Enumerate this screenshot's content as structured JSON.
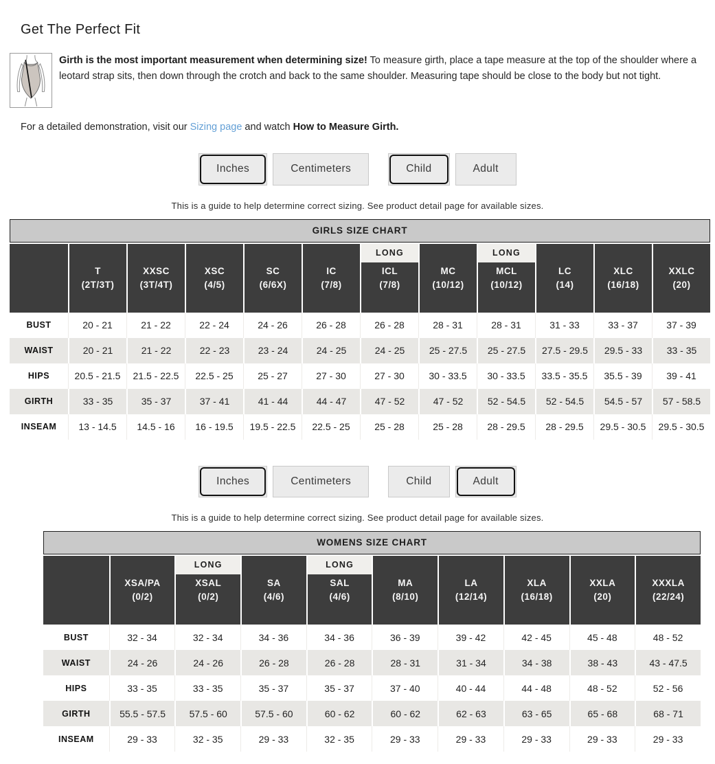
{
  "page_title": "Get The Perfect Fit",
  "intro": {
    "bold": "Girth is the most important measurement when determining size!",
    "text": " To measure girth, place a tape measure at the top of the shoulder where a leotard strap sits, then down through the crotch and back to the same shoulder. Measuring tape should be close to the body but not tight."
  },
  "demo": {
    "prefix": "For a detailed demonstration, visit our ",
    "link": "Sizing page",
    "middle": " and watch ",
    "bold": "How to Measure Girth."
  },
  "sizing_note": "This is a guide to help determine correct sizing. See product detail page for available sizes.",
  "icons": {
    "leotard_diagram": "leotard-girth-measurement-diagram"
  },
  "colors": {
    "link": "#64a0d6",
    "chart_title_bar_bg": "#c9c9c9",
    "header_bg": "#3d3d3d",
    "header_text": "#f6f6f6",
    "long_badge_bg": "#f0efec",
    "row_alt_bg": "#e8e7e4",
    "button_bg": "#ebebeb",
    "selected_button_border": "#101010"
  },
  "girls_section": {
    "toggles": [
      {
        "label": "Inches",
        "selected": true,
        "group_start": false
      },
      {
        "label": "Centimeters",
        "selected": false,
        "group_start": false
      },
      {
        "label": "Child",
        "selected": true,
        "group_start": true
      },
      {
        "label": "Adult",
        "selected": false,
        "group_start": false
      }
    ],
    "chart": {
      "title": "GIRLS SIZE CHART",
      "long_label": "LONG",
      "columns": [
        {
          "label": "T",
          "sub": "(2T/3T)",
          "long": false
        },
        {
          "label": "XXSC",
          "sub": "(3T/4T)",
          "long": false
        },
        {
          "label": "XSC",
          "sub": "(4/5)",
          "long": false
        },
        {
          "label": "SC",
          "sub": "(6/6X)",
          "long": false
        },
        {
          "label": "IC",
          "sub": "(7/8)",
          "long": false
        },
        {
          "label": "ICL",
          "sub": "(7/8)",
          "long": true
        },
        {
          "label": "MC",
          "sub": "(10/12)",
          "long": false
        },
        {
          "label": "MCL",
          "sub": "(10/12)",
          "long": true
        },
        {
          "label": "LC",
          "sub": "(14)",
          "long": false
        },
        {
          "label": "XLC",
          "sub": "(16/18)",
          "long": false
        },
        {
          "label": "XXLC",
          "sub": "(20)",
          "long": false
        }
      ],
      "rows": [
        {
          "label": "BUST",
          "values": [
            "20 - 21",
            "21 - 22",
            "22 - 24",
            "24 - 26",
            "26 - 28",
            "26 - 28",
            "28 - 31",
            "28 - 31",
            "31 - 33",
            "33 - 37",
            "37 - 39"
          ]
        },
        {
          "label": "WAIST",
          "values": [
            "20 - 21",
            "21 - 22",
            "22 - 23",
            "23 - 24",
            "24 - 25",
            "24 - 25",
            "25 - 27.5",
            "25 - 27.5",
            "27.5 - 29.5",
            "29.5 - 33",
            "33 - 35"
          ]
        },
        {
          "label": "HIPS",
          "values": [
            "20.5 - 21.5",
            "21.5 - 22.5",
            "22.5 - 25",
            "25 - 27",
            "27 - 30",
            "27 - 30",
            "30 - 33.5",
            "30 - 33.5",
            "33.5 - 35.5",
            "35.5 - 39",
            "39 - 41"
          ]
        },
        {
          "label": "GIRTH",
          "values": [
            "33 - 35",
            "35 - 37",
            "37 - 41",
            "41 - 44",
            "44 - 47",
            "47 - 52",
            "47 - 52",
            "52 - 54.5",
            "52 - 54.5",
            "54.5 - 57",
            "57 - 58.5"
          ]
        },
        {
          "label": "INSEAM",
          "values": [
            "13 - 14.5",
            "14.5 - 16",
            "16 - 19.5",
            "19.5 - 22.5",
            "22.5 - 25",
            "25 - 28",
            "25 - 28",
            "28 - 29.5",
            "28 - 29.5",
            "29.5 - 30.5",
            "29.5 - 30.5"
          ]
        }
      ]
    }
  },
  "womens_section": {
    "toggles": [
      {
        "label": "Inches",
        "selected": true,
        "group_start": false
      },
      {
        "label": "Centimeters",
        "selected": false,
        "group_start": false
      },
      {
        "label": "Child",
        "selected": false,
        "group_start": true
      },
      {
        "label": "Adult",
        "selected": true,
        "group_start": false
      }
    ],
    "chart": {
      "title": "WOMENS SIZE CHART",
      "long_label": "LONG",
      "columns": [
        {
          "label": "XSA/PA",
          "sub": "(0/2)",
          "long": false
        },
        {
          "label": "XSAL",
          "sub": "(0/2)",
          "long": true
        },
        {
          "label": "SA",
          "sub": "(4/6)",
          "long": false
        },
        {
          "label": "SAL",
          "sub": "(4/6)",
          "long": true
        },
        {
          "label": "MA",
          "sub": "(8/10)",
          "long": false
        },
        {
          "label": "LA",
          "sub": "(12/14)",
          "long": false
        },
        {
          "label": "XLA",
          "sub": "(16/18)",
          "long": false
        },
        {
          "label": "XXLA",
          "sub": "(20)",
          "long": false
        },
        {
          "label": "XXXLA",
          "sub": "(22/24)",
          "long": false
        }
      ],
      "rows": [
        {
          "label": "BUST",
          "values": [
            "32 - 34",
            "32 - 34",
            "34 - 36",
            "34 - 36",
            "36 - 39",
            "39 - 42",
            "42 - 45",
            "45 - 48",
            "48 - 52"
          ]
        },
        {
          "label": "WAIST",
          "values": [
            "24 - 26",
            "24 - 26",
            "26 - 28",
            "26 - 28",
            "28 - 31",
            "31 - 34",
            "34 - 38",
            "38 - 43",
            "43 - 47.5"
          ]
        },
        {
          "label": "HIPS",
          "values": [
            "33 - 35",
            "33 - 35",
            "35 - 37",
            "35 - 37",
            "37 - 40",
            "40 - 44",
            "44 - 48",
            "48 - 52",
            "52 - 56"
          ]
        },
        {
          "label": "GIRTH",
          "values": [
            "55.5 - 57.5",
            "57.5 - 60",
            "57.5 - 60",
            "60 - 62",
            "60 - 62",
            "62 - 63",
            "63 - 65",
            "65 - 68",
            "68 - 71"
          ]
        },
        {
          "label": "INSEAM",
          "values": [
            "29 - 33",
            "32 - 35",
            "29 - 33",
            "32 - 35",
            "29 - 33",
            "29 - 33",
            "29 - 33",
            "29 - 33",
            "29 - 33"
          ]
        }
      ]
    }
  }
}
